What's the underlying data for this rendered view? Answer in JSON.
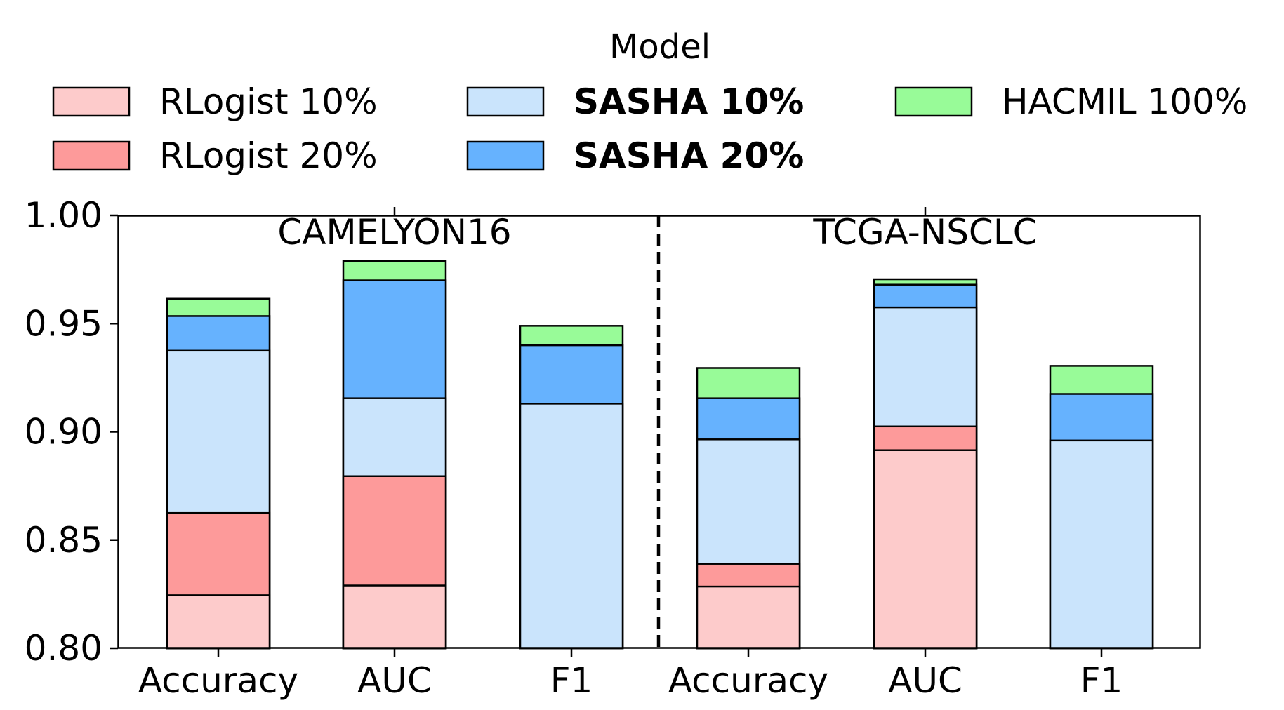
{
  "chart_data": {
    "type": "bar",
    "stacked_overlay": true,
    "legend_title": "Model",
    "legend_position": "top",
    "groups": [
      "CAMELYON16",
      "TCGA-NSCLC"
    ],
    "categories": [
      "Accuracy",
      "AUC",
      "F1",
      "Accuracy",
      "AUC",
      "F1"
    ],
    "category_group": [
      0,
      0,
      0,
      1,
      1,
      1
    ],
    "yticks": [
      "0.80",
      "0.85",
      "0.90",
      "0.95",
      "1.00"
    ],
    "ylim": [
      0.8,
      1.0
    ],
    "grid": false,
    "series": [
      {
        "name": "RLogist 10%",
        "color": "#fdcbcb",
        "bold": false,
        "values": [
          0.8245,
          0.829,
          null,
          0.8285,
          0.8915,
          null
        ]
      },
      {
        "name": "RLogist 20%",
        "color": "#fd9a9a",
        "bold": false,
        "values": [
          0.8625,
          0.8795,
          null,
          0.839,
          0.9025,
          null
        ]
      },
      {
        "name": "SASHA 10%",
        "color": "#cae4fc",
        "bold": true,
        "values": [
          0.9375,
          0.9155,
          0.913,
          0.8965,
          0.9575,
          0.896
        ]
      },
      {
        "name": "SASHA 20%",
        "color": "#66b2fe",
        "bold": true,
        "values": [
          0.9535,
          0.97,
          0.94,
          0.9155,
          0.968,
          0.9175
        ]
      },
      {
        "name": "HACMIL 100%",
        "color": "#98fb98",
        "bold": false,
        "values": [
          0.9615,
          0.979,
          0.949,
          0.9295,
          0.9705,
          0.9305
        ]
      }
    ]
  }
}
